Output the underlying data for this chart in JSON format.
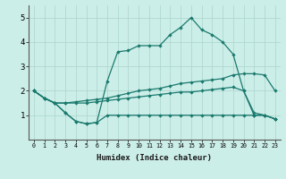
{
  "xlabel": "Humidex (Indice chaleur)",
  "ylabel": "",
  "xlim": [
    -0.5,
    23.5
  ],
  "ylim": [
    0,
    5.5
  ],
  "xticks": [
    0,
    1,
    2,
    3,
    4,
    5,
    6,
    7,
    8,
    9,
    10,
    11,
    12,
    13,
    14,
    15,
    16,
    17,
    18,
    19,
    20,
    21,
    22,
    23
  ],
  "yticks": [
    1,
    2,
    3,
    4,
    5
  ],
  "bg_color": "#cceee8",
  "grid_color": "#aad4cc",
  "line_color": "#1a7a6e",
  "line1": [
    2.0,
    1.7,
    1.5,
    1.1,
    0.75,
    0.65,
    0.7,
    1.0,
    1.0,
    1.0,
    1.0,
    1.0,
    1.0,
    1.0,
    1.0,
    1.0,
    1.0,
    1.0,
    1.0,
    1.0,
    1.0,
    1.0,
    1.0,
    0.85
  ],
  "line2": [
    2.0,
    1.7,
    1.5,
    1.5,
    1.5,
    1.5,
    1.55,
    1.6,
    1.65,
    1.7,
    1.75,
    1.8,
    1.85,
    1.9,
    1.95,
    1.95,
    2.0,
    2.05,
    2.1,
    2.15,
    2.0,
    1.0,
    1.0,
    0.85
  ],
  "line3": [
    2.0,
    1.7,
    1.5,
    1.5,
    1.55,
    1.6,
    1.65,
    1.7,
    1.8,
    1.9,
    2.0,
    2.05,
    2.1,
    2.2,
    2.3,
    2.35,
    2.4,
    2.45,
    2.5,
    2.65,
    2.7,
    2.7,
    2.65,
    2.0
  ],
  "line4": [
    2.0,
    1.7,
    1.5,
    1.1,
    0.75,
    0.65,
    0.7,
    2.4,
    3.6,
    3.65,
    3.85,
    3.85,
    3.85,
    4.3,
    4.6,
    5.0,
    4.5,
    4.3,
    4.0,
    3.5,
    2.0,
    1.1,
    1.0,
    0.85
  ]
}
